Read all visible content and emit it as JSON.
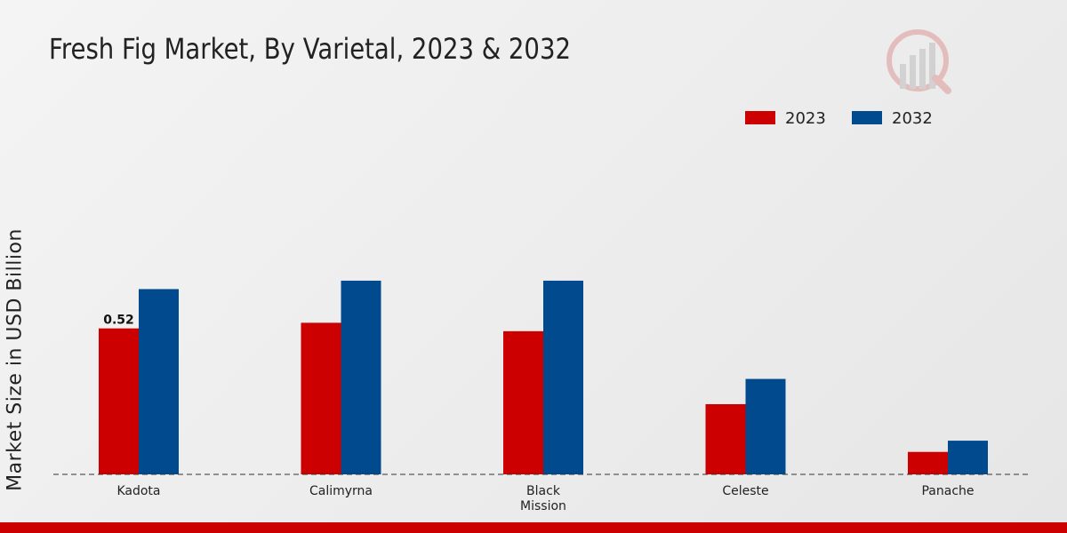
{
  "chart_data": {
    "type": "bar",
    "title": "Fresh Fig Market, By Varietal, 2023 & 2032",
    "xlabel": "",
    "ylabel": "Market Size in USD Billion",
    "categories": [
      "Kadota",
      "Calimyrna",
      "Black Mission",
      "Celeste",
      "Panache"
    ],
    "category_lines": [
      [
        "Kadota"
      ],
      [
        "Calimyrna"
      ],
      [
        "Black",
        "Mission"
      ],
      [
        "Celeste"
      ],
      [
        "Panache"
      ]
    ],
    "series": [
      {
        "name": "2023",
        "color": "#cc0000",
        "values": [
          0.52,
          0.54,
          0.51,
          0.25,
          0.08
        ]
      },
      {
        "name": "2032",
        "color": "#004a8d",
        "values": [
          0.66,
          0.69,
          0.69,
          0.34,
          0.12
        ]
      }
    ],
    "data_labels": [
      {
        "series": "2023",
        "category": "Kadota",
        "text": "0.52"
      }
    ],
    "ylim": [
      0,
      1.0
    ],
    "grid": false,
    "legend_position": "top-right"
  }
}
